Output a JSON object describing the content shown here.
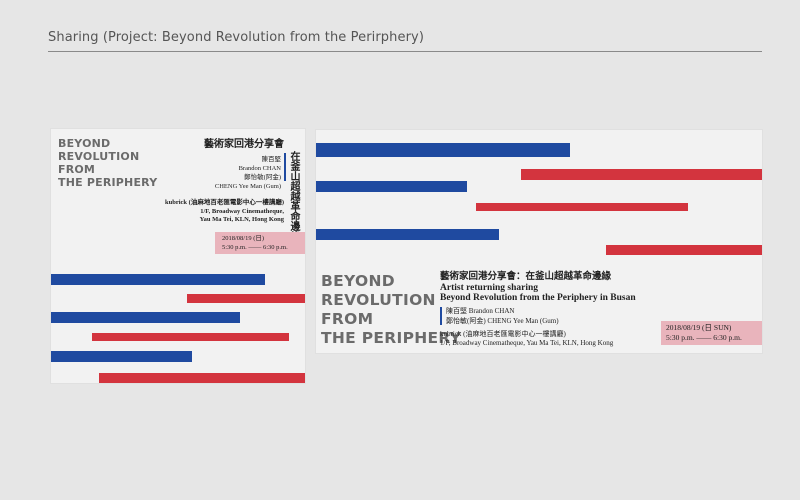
{
  "page": {
    "title": "Sharing (Project: Beyond Revolution from the Perirphery)"
  },
  "colors": {
    "background": "#e6e6e6",
    "poster": "#f2f2f2",
    "blue": "#1f4aa0",
    "red": "#d3343e",
    "title_grey": "#6b6b6b",
    "date_pink": "#e9b4bc"
  },
  "poster_square": {
    "title_lines": [
      "BEYOND",
      "REVOLUTION",
      "FROM",
      "THE PERIPHERY"
    ],
    "event_zh": "藝術家回港分享會",
    "vertical_zh": "在釜山超越革命邊緣",
    "speaker1_zh": "陳百堅",
    "speaker1_en": "Brandon CHAN",
    "speaker2_zh": "鄭怡敏(阿金)",
    "speaker2_en": "CHENG Yee Man (Gum)",
    "venue_zh": "kubrick (油麻地百老匯電影中心一樓講廳)",
    "venue_line2": "1/F, Broadway Cinematheque,",
    "venue_line3": "Yau Ma Tei, KLN, Hong Kong",
    "date": "2018/08/19 (日)",
    "time": "5:30 p.m. —— 6:30 p.m."
  },
  "poster_wide": {
    "title_lines": [
      "BEYOND",
      "REVOLUTION",
      "FROM",
      "THE PERIPHERY"
    ],
    "event_zh": "藝術家回港分享會：在釜山超越革命邊緣",
    "event_en_1": "Artist returning sharing",
    "event_en_2": "Beyond Revolution from the Periphery in Busan",
    "speaker1": "陳百堅 Brandon CHAN",
    "speaker2": "鄭怡敏(阿金) CHENG Yee Man (Gum)",
    "venue_zh": "kubrick (油麻地百老匯電影中心一樓講廳)",
    "venue_en": "1/F, Broadway Cinematheque, Yau Ma Tei, KLN, Hong Kong",
    "date": "2018/08/19 (日 SUN)",
    "time": "5:30 p.m. —— 6:30 p.m."
  }
}
